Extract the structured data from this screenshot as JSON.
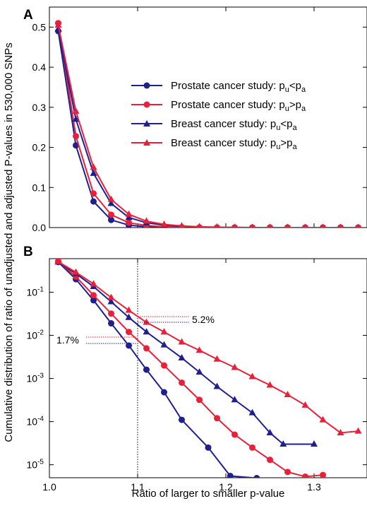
{
  "figure": {
    "ylabel": "Cumulative distribution of ratio of unadjusted and adjusted P-values in 530,000 SNPs",
    "xlabel": "Ratio of larger to smaller p-value"
  },
  "colors": {
    "blue": "#1f1f8f",
    "red": "#e8203a"
  },
  "chart_data": [
    {
      "type": "line",
      "panel_label": "A",
      "x_scale": "linear",
      "y_scale": "linear",
      "xlim": [
        1.0,
        1.36
      ],
      "ylim": [
        0,
        0.55
      ],
      "x_ticks": [
        1.0,
        1.1,
        1.2,
        1.3
      ],
      "y_ticks": [
        0.0,
        0.1,
        0.2,
        0.3,
        0.4,
        0.5
      ],
      "y_tick_labels": [
        "0.0",
        "0.1",
        "0.2",
        "0.3",
        "0.4",
        "0.5"
      ],
      "legend_position": "right",
      "series": [
        {
          "legend_main": "Prostate cancer study: p",
          "legend_s1": "u",
          "legend_mid": "<p",
          "legend_s2": "a",
          "color": "#1f1f8f",
          "marker": "circle",
          "x": [
            1.01,
            1.03,
            1.05,
            1.07,
            1.09,
            1.11,
            1.13,
            1.15,
            1.17,
            1.19,
            1.21,
            1.23,
            1.25,
            1.27,
            1.29,
            1.31,
            1.33,
            1.35
          ],
          "y": [
            0.49,
            0.205,
            0.065,
            0.019,
            0.006,
            0.002,
            0.0008,
            0.0003,
            0.0001,
            5e-05,
            2e-05,
            1e-05,
            1e-05,
            1e-05,
            1e-05,
            1e-05,
            1e-05,
            1e-05
          ]
        },
        {
          "legend_main": "Prostate cancer study: p",
          "legend_s1": "u",
          "legend_mid": ">p",
          "legend_s2": "a",
          "color": "#e8203a",
          "marker": "circle",
          "x": [
            1.01,
            1.03,
            1.05,
            1.07,
            1.09,
            1.11,
            1.13,
            1.15,
            1.17,
            1.19,
            1.21,
            1.23,
            1.25,
            1.27,
            1.29,
            1.31,
            1.33,
            1.35
          ],
          "y": [
            0.51,
            0.228,
            0.085,
            0.032,
            0.012,
            0.005,
            0.002,
            0.0008,
            0.0003,
            0.0001,
            5e-05,
            2e-05,
            1e-05,
            1e-05,
            1e-05,
            1e-05,
            1e-05,
            1e-05
          ]
        },
        {
          "legend_main": "Breast cancer study: p",
          "legend_s1": "u",
          "legend_mid": "<p",
          "legend_s2": "a",
          "color": "#1f1f8f",
          "marker": "triangle",
          "x": [
            1.01,
            1.03,
            1.05,
            1.07,
            1.09,
            1.11,
            1.13,
            1.15,
            1.17,
            1.19,
            1.21,
            1.23,
            1.25,
            1.27,
            1.29,
            1.31,
            1.33,
            1.35
          ],
          "y": [
            0.495,
            0.27,
            0.135,
            0.06,
            0.025,
            0.012,
            0.006,
            0.003,
            0.001,
            0.0005,
            0.0002,
            0.0001,
            5e-05,
            3e-05,
            3e-05,
            3e-05,
            3e-05,
            3e-05
          ]
        },
        {
          "legend_main": "Breast cancer study: p",
          "legend_s1": "u",
          "legend_mid": ">p",
          "legend_s2": "a",
          "color": "#e8203a",
          "marker": "triangle",
          "x": [
            1.01,
            1.03,
            1.05,
            1.07,
            1.09,
            1.11,
            1.13,
            1.15,
            1.17,
            1.19,
            1.21,
            1.23,
            1.25,
            1.27,
            1.29,
            1.31,
            1.33,
            1.35
          ],
          "y": [
            0.505,
            0.29,
            0.15,
            0.07,
            0.033,
            0.016,
            0.008,
            0.004,
            0.002,
            0.001,
            0.0005,
            0.0002,
            0.0001,
            5e-05,
            3e-05,
            2e-05,
            2e-05,
            3e-05
          ]
        }
      ]
    },
    {
      "type": "line",
      "panel_label": "B",
      "x_scale": "linear",
      "y_scale": "log",
      "xlim": [
        1.0,
        1.36
      ],
      "ylim": [
        5e-06,
        0.6
      ],
      "x_ticks": [
        1.0,
        1.1,
        1.2,
        1.3
      ],
      "x_tick_labels": [
        "1.0",
        "1.1",
        "1.2",
        "1.3"
      ],
      "y_ticks": [
        0.1,
        0.01,
        0.001,
        0.0001,
        1e-05
      ],
      "y_tick_mantissa": "10",
      "y_tick_exponents": [
        "-1",
        "-2",
        "-3",
        "-4",
        "-5"
      ],
      "reference_line_x": 1.1,
      "annotations": [
        {
          "text": "5.2%",
          "value": 0.052
        },
        {
          "text": "1.7%",
          "value": 0.017
        }
      ],
      "series": [
        {
          "color": "#1f1f8f",
          "marker": "circle",
          "x": [
            1.01,
            1.03,
            1.05,
            1.07,
            1.09,
            1.11,
            1.13,
            1.15,
            1.18,
            1.205,
            1.235
          ],
          "y": [
            0.5,
            0.2,
            0.065,
            0.019,
            0.0058,
            0.0016,
            0.00048,
            0.00011,
            2.5e-05,
            5.5e-06,
            4.9e-06
          ]
        },
        {
          "color": "#e8203a",
          "marker": "circle",
          "x": [
            1.01,
            1.03,
            1.05,
            1.07,
            1.09,
            1.11,
            1.13,
            1.15,
            1.17,
            1.19,
            1.21,
            1.23,
            1.25,
            1.27,
            1.29,
            1.31
          ],
          "y": [
            0.52,
            0.23,
            0.085,
            0.032,
            0.012,
            0.005,
            0.002,
            0.0008,
            0.00032,
            0.00012,
            5e-05,
            2.5e-05,
            1.3e-05,
            6.8e-06,
            5.3e-06,
            5.8e-06
          ]
        },
        {
          "color": "#1f1f8f",
          "marker": "triangle",
          "x": [
            1.01,
            1.03,
            1.05,
            1.07,
            1.09,
            1.11,
            1.13,
            1.15,
            1.17,
            1.19,
            1.21,
            1.23,
            1.25,
            1.265,
            1.3
          ],
          "y": [
            0.5,
            0.27,
            0.135,
            0.06,
            0.026,
            0.012,
            0.006,
            0.003,
            0.0014,
            0.00065,
            0.00032,
            0.00016,
            5.5e-05,
            3e-05,
            3e-05
          ]
        },
        {
          "color": "#e8203a",
          "marker": "triangle",
          "x": [
            1.01,
            1.03,
            1.05,
            1.07,
            1.09,
            1.11,
            1.13,
            1.15,
            1.17,
            1.19,
            1.21,
            1.23,
            1.25,
            1.27,
            1.29,
            1.31,
            1.33,
            1.35
          ],
          "y": [
            0.51,
            0.29,
            0.155,
            0.075,
            0.038,
            0.02,
            0.012,
            0.007,
            0.0045,
            0.0028,
            0.0018,
            0.0011,
            0.0007,
            0.00042,
            0.00024,
            0.00011,
            5.5e-05,
            6e-05
          ]
        }
      ]
    }
  ]
}
